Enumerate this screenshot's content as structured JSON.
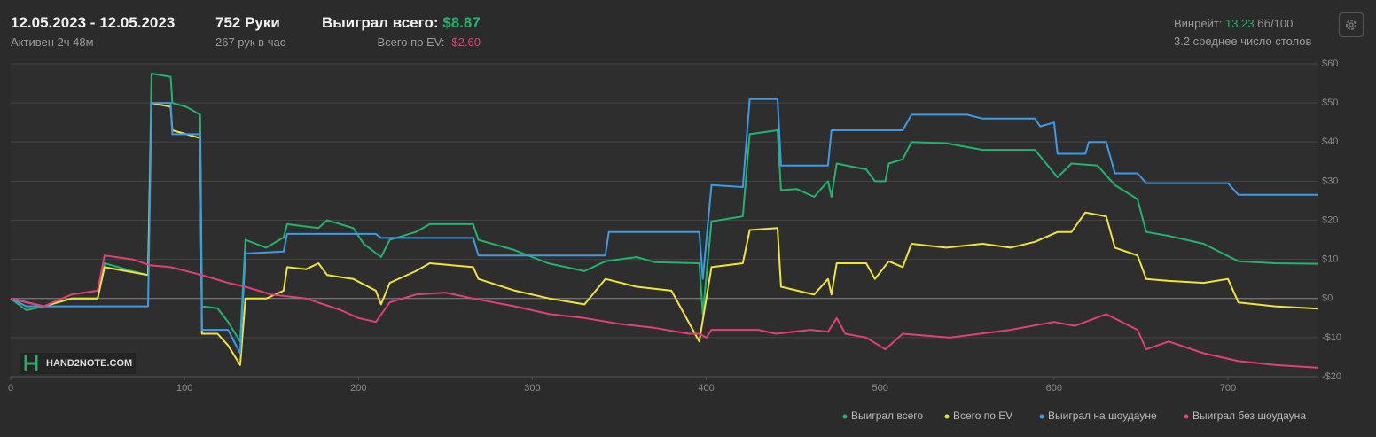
{
  "header": {
    "date_range": "12.05.2023 - 12.05.2023",
    "active": "Активен 2ч 48м",
    "hands": "752 Руки",
    "hands_per_hour": "267 рук в час",
    "won_label": "Выиграл всего: ",
    "won_value": "$8.87",
    "ev_label": "Всего по EV: ",
    "ev_value": "-$2.60",
    "winrate_label": "Винрейт: ",
    "winrate_value": "13.23",
    "winrate_unit": " бб/100",
    "tables": "3.2 среднее число столов"
  },
  "logo": "HAND2NOTE.COM",
  "chart_data": {
    "type": "line",
    "xlim": [
      0,
      752
    ],
    "ylim": [
      -20,
      60
    ],
    "xticks": [
      0,
      100,
      200,
      300,
      400,
      500,
      600,
      700
    ],
    "yticks": [
      {
        "value": 60,
        "label": "$60"
      },
      {
        "value": 50,
        "label": "$50"
      },
      {
        "value": 40,
        "label": "$40"
      },
      {
        "value": 30,
        "label": "$30"
      },
      {
        "value": 20,
        "label": "$20"
      },
      {
        "value": 10,
        "label": "$10"
      },
      {
        "value": 0,
        "label": "$0"
      },
      {
        "value": -10,
        "label": "-$10"
      },
      {
        "value": -20,
        "label": "-$20"
      }
    ],
    "grid": true,
    "legend": "bottom-right",
    "series": [
      {
        "name": "Выиграл всего",
        "color": "#22b46c",
        "x": [
          0,
          9,
          19,
          35,
          50,
          54,
          70,
          79,
          81,
          92,
          93,
          101,
          109,
          110,
          119,
          125,
          132,
          135,
          147,
          157,
          159,
          177,
          182,
          197,
          203,
          213,
          218,
          233,
          241,
          266,
          269,
          289,
          309,
          330,
          342,
          360,
          370,
          396,
          398,
          403,
          421,
          425,
          441,
          443,
          452,
          462,
          470,
          472,
          475,
          492,
          497,
          503,
          505,
          513,
          518,
          538,
          559,
          589,
          602,
          610,
          625,
          635,
          648,
          653,
          666,
          686,
          706,
          727,
          752
        ],
        "values": [
          0,
          -3,
          -2,
          0,
          0,
          9,
          7,
          6,
          57.5,
          56.7,
          50,
          49,
          47,
          -2,
          -2.5,
          -6,
          -11,
          15,
          13,
          15.6,
          19,
          18,
          20,
          18,
          14,
          10.6,
          15,
          17,
          19,
          19,
          15,
          12.5,
          9,
          7,
          9.5,
          10.6,
          9.3,
          9,
          -4,
          19.7,
          21,
          42,
          43,
          27.7,
          28,
          26,
          30,
          26,
          34.5,
          33,
          30,
          30,
          34.5,
          35.6,
          40,
          39.7,
          38,
          38,
          31,
          34.5,
          34,
          29,
          25.4,
          17,
          16,
          14,
          9.5,
          9,
          8.87
        ]
      },
      {
        "name": "Всего по EV",
        "color": "#f0e43a",
        "x": [
          0,
          19,
          35,
          50,
          54,
          79,
          81,
          92,
          93,
          101,
          109,
          110,
          119,
          125,
          132,
          135,
          147,
          157,
          159,
          170,
          177,
          182,
          197,
          210,
          213,
          218,
          233,
          241,
          266,
          269,
          290,
          310,
          330,
          342,
          360,
          380,
          396,
          403,
          421,
          425,
          441,
          443,
          462,
          470,
          472,
          475,
          492,
          497,
          505,
          513,
          518,
          538,
          559,
          575,
          589,
          602,
          610,
          618,
          630,
          635,
          648,
          653,
          666,
          686,
          700,
          706,
          727,
          752
        ],
        "values": [
          0,
          -2,
          0,
          0,
          8,
          6,
          50,
          49,
          43,
          42,
          41,
          -9,
          -9,
          -12,
          -17,
          0,
          0,
          2,
          8,
          7.5,
          9,
          6,
          5,
          2,
          -1.5,
          4,
          7,
          9,
          8,
          5,
          2,
          0,
          -1.5,
          5,
          3,
          2,
          -11,
          8,
          9,
          17.5,
          18,
          3,
          1,
          5,
          1,
          9,
          9,
          5,
          9.5,
          8,
          14,
          13,
          14,
          13,
          14.5,
          17,
          17,
          22,
          21,
          13,
          11,
          5,
          4.5,
          4,
          5,
          -1,
          -2,
          -2.6
        ]
      },
      {
        "name": "Выиграл на шоудауне",
        "color": "#3b9be8",
        "x": [
          0,
          9,
          19,
          35,
          50,
          79,
          81,
          92,
          93,
          109,
          110,
          125,
          132,
          135,
          157,
          159,
          210,
          213,
          266,
          269,
          342,
          344,
          396,
          398,
          403,
          421,
          425,
          441,
          443,
          470,
          472,
          513,
          518,
          550,
          559,
          589,
          592,
          600,
          602,
          618,
          620,
          630,
          635,
          648,
          653,
          700,
          706,
          752
        ],
        "values": [
          0,
          -2,
          -2,
          -2,
          -2,
          -2,
          50,
          50,
          42,
          42,
          -8,
          -8,
          -14,
          11.5,
          12,
          16.5,
          16.5,
          15.5,
          15.5,
          11,
          11,
          17,
          17,
          5,
          29,
          28.5,
          51,
          51,
          34,
          34,
          43,
          43,
          47,
          47,
          46,
          46,
          44,
          45,
          37,
          37,
          40,
          40,
          32,
          32,
          29.5,
          29.5,
          26.5,
          26.5
        ]
      },
      {
        "name": "Выиграл без шоудауна",
        "color": "#e0407a",
        "x": [
          0,
          9,
          19,
          35,
          50,
          54,
          70,
          80,
          92,
          110,
          125,
          135,
          150,
          170,
          190,
          200,
          210,
          218,
          233,
          250,
          266,
          290,
          310,
          330,
          350,
          370,
          390,
          396,
          400,
          403,
          430,
          440,
          460,
          470,
          475,
          480,
          492,
          503,
          513,
          540,
          575,
          600,
          612,
          630,
          648,
          653,
          666,
          686,
          706,
          727,
          752
        ],
        "values": [
          0,
          -1,
          -2,
          1,
          2,
          11,
          10,
          8.5,
          8,
          6,
          4,
          3,
          1,
          0,
          -3,
          -5,
          -6,
          -1,
          1,
          1.5,
          0,
          -2,
          -4,
          -5,
          -6.5,
          -7.5,
          -9,
          -9,
          -10,
          -8,
          -8,
          -9,
          -8,
          -8.5,
          -5,
          -9,
          -10,
          -13,
          -9,
          -10,
          -8,
          -6,
          -7,
          -4,
          -8,
          -13,
          -11,
          -14,
          -16,
          -17,
          -17.7
        ]
      }
    ]
  }
}
